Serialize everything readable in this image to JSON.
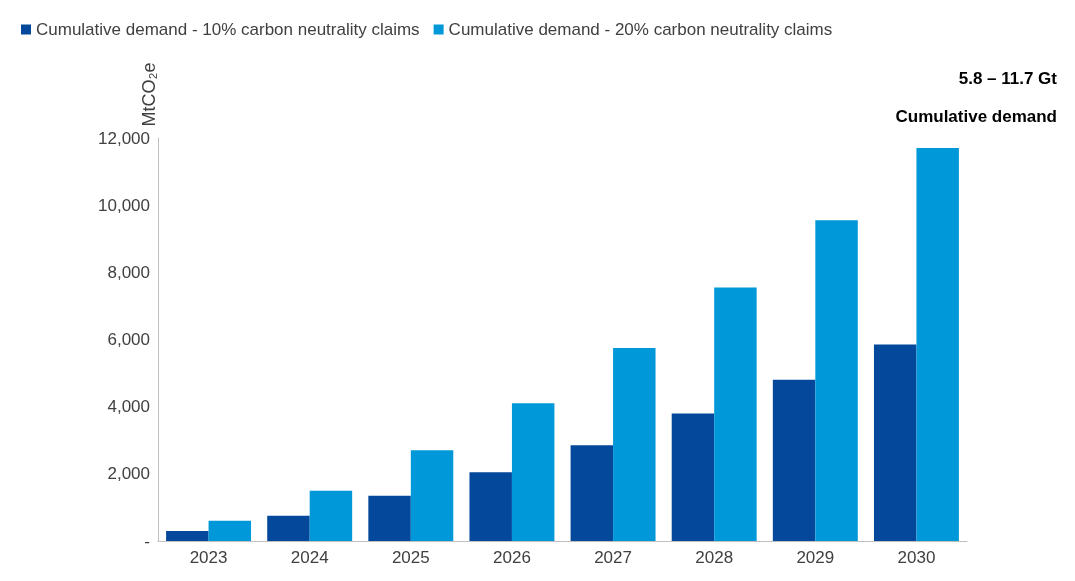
{
  "chart_data": {
    "type": "bar",
    "ylabel": "MtCO₂e",
    "categories": [
      "2023",
      "2024",
      "2025",
      "2026",
      "2027",
      "2028",
      "2029",
      "2030"
    ],
    "series": [
      {
        "name": "Cumulative demand - 10% carbon neutrality claims",
        "color": "#03489a",
        "values": [
          300,
          750,
          1350,
          2050,
          2850,
          3800,
          4800,
          5850
        ]
      },
      {
        "name": "Cumulative demand - 20% carbon neutrality claims",
        "color": "#0098d8",
        "values": [
          600,
          1500,
          2700,
          4100,
          5750,
          7550,
          9550,
          11700
        ]
      }
    ],
    "ylim": [
      0,
      12000
    ],
    "yticks": [
      {
        "value": 0,
        "label": "-"
      },
      {
        "value": 2000,
        "label": "2,000"
      },
      {
        "value": 4000,
        "label": "4,000"
      },
      {
        "value": 6000,
        "label": "6,000"
      },
      {
        "value": 8000,
        "label": "8,000"
      },
      {
        "value": 10000,
        "label": "10,000"
      },
      {
        "value": 12000,
        "label": "12,000"
      }
    ],
    "annotations": [
      "5.8 – 11.7 Gt",
      "Cumulative demand"
    ],
    "grid": false,
    "legend": "top left"
  }
}
